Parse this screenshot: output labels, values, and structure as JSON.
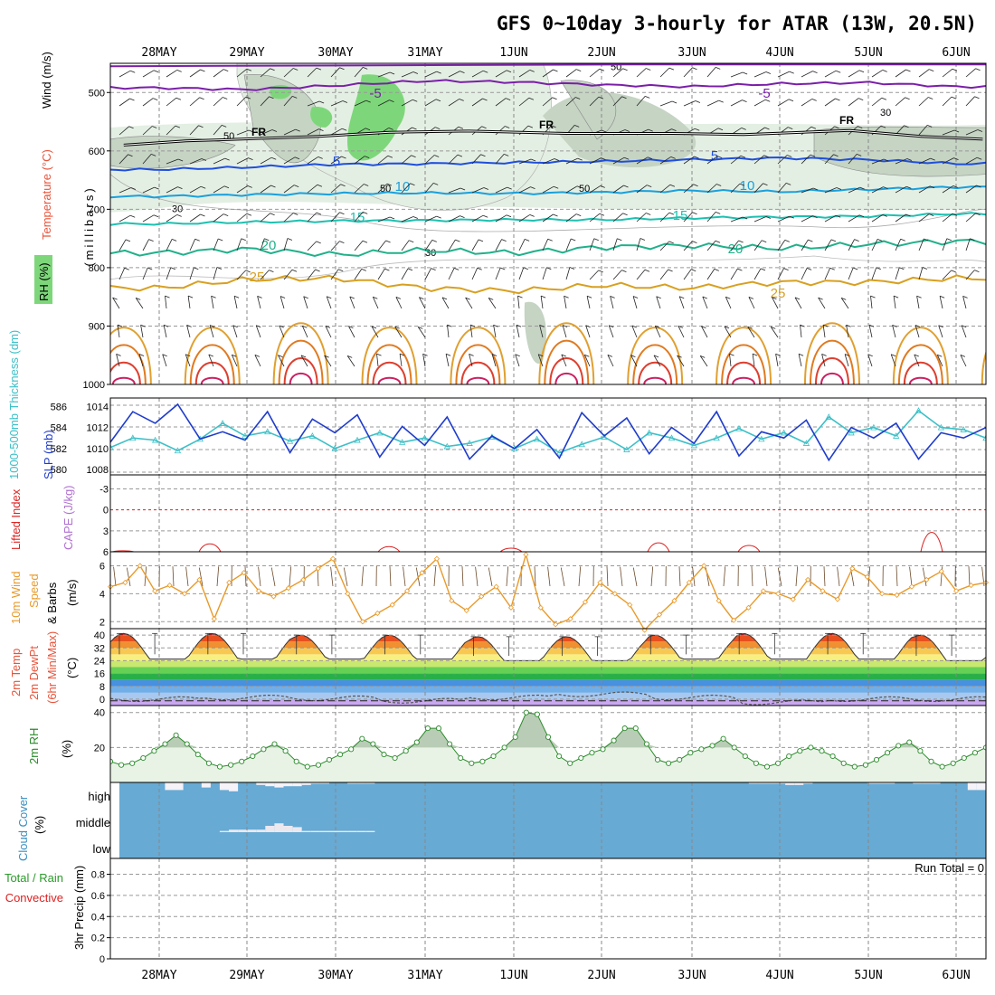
{
  "title": "GFS 0~10day 3-hourly for ATAR (13W, 20.5N)",
  "colors": {
    "rh_light": "#e4efe3",
    "rh_mid": "#c5d4c3",
    "rh_high": "#7dd77a",
    "temp_m5": "#7a1fa8",
    "temp_5": "#1f4fdc",
    "temp_10": "#1aa0dc",
    "temp_15": "#1ec0b0",
    "temp_20": "#20b08a",
    "temp_25": "#d8a020",
    "slp": "#1f3ccc",
    "thick": "#3cc0c8",
    "li": "#dd2222",
    "cape": "#b070d0",
    "wind10": "#e89a2a",
    "rh2m": "#2a8a2a",
    "rh2m_fill": "#d4e8d2",
    "cloud": "#67aad4",
    "precip_lbl_green": "#2a9a2a",
    "precip_lbl_red": "#dd2222"
  },
  "chart_data": [
    {
      "type": "heatmap",
      "panel": "upper-air",
      "ylabel": "(millibars)",
      "ylabel_parts": [
        "Wind (m/s)",
        "Temperature (°C)",
        "RH (%)"
      ],
      "yticks": [
        500,
        600,
        700,
        800,
        900,
        1000
      ],
      "ylim": [
        450,
        1000
      ],
      "x_dates": [
        "28MAY",
        "29MAY",
        "30MAY",
        "31MAY",
        "1JUN",
        "2JUN",
        "3JUN",
        "4JUN",
        "5JUN",
        "6JUN"
      ],
      "freezing_label": "FR",
      "freezing_level": [
        {
          "date": "27.6",
          "mb": 590
        },
        {
          "date": "28.3",
          "mb": 583
        },
        {
          "date": "28.9",
          "mb": 580
        },
        {
          "date": "29.8",
          "mb": 575
        },
        {
          "date": "30.6",
          "mb": 568
        },
        {
          "date": "31.5",
          "mb": 566
        },
        {
          "date": "1.6",
          "mb": 570
        },
        {
          "date": "2.8",
          "mb": 570
        },
        {
          "date": "3.6",
          "mb": 572
        },
        {
          "date": "4.8",
          "mb": 565
        },
        {
          "date": "5.6",
          "mb": 575
        },
        {
          "date": "6.3",
          "mb": 580
        }
      ],
      "temp_isotherms": [
        {
          "label": "-5",
          "mb": [
            492,
            495,
            488,
            480,
            482,
            487,
            490,
            485,
            483,
            490
          ]
        },
        {
          "label": "5",
          "mb": [
            632,
            628,
            623,
            622,
            620,
            618,
            615,
            612,
            615,
            622
          ]
        },
        {
          "label": "10",
          "mb": [
            678,
            675,
            673,
            672,
            673,
            671,
            668,
            670,
            666,
            662
          ]
        },
        {
          "label": "15",
          "mb": [
            725,
            722,
            720,
            719,
            718,
            718,
            715,
            713,
            712,
            708
          ]
        },
        {
          "label": "20",
          "mb": [
            775,
            768,
            778,
            770,
            775,
            765,
            762,
            767,
            760,
            755
          ]
        },
        {
          "label": "25",
          "mb": [
            835,
            820,
            818,
            835,
            840,
            830,
            835,
            825,
            825,
            818
          ]
        }
      ],
      "rh_contour_labels": [
        "30",
        "50",
        "70"
      ]
    },
    {
      "type": "line",
      "panel": "pressure",
      "series": [
        {
          "name": "SLP (mb)",
          "yticks": [
            1008,
            1010,
            1012,
            1014
          ],
          "values": [
            1010.6,
            1013.5,
            1012.4,
            1014.2,
            1010.9,
            1011.6,
            1010.8,
            1013.5,
            1009.6,
            1012.8,
            1011.5,
            1013.2,
            1009.2,
            1012.1,
            1010.3,
            1013.0,
            1009.0,
            1011.2,
            1010.0,
            1011.8,
            1009.1,
            1013.4,
            1011.2,
            1012.9,
            1009.5,
            1012.0,
            1010.5,
            1013.5,
            1009.3,
            1011.6,
            1011.0,
            1012.7,
            1008.9,
            1012.0,
            1011.0,
            1012.4,
            1009.0,
            1011.5,
            1011.0,
            1012.0
          ]
        },
        {
          "name": "1000-500mb Thickness (dm)",
          "yticks": [
            580,
            582,
            584,
            586
          ],
          "values": [
            582.1,
            583.0,
            582.8,
            581.8,
            582.9,
            584.4,
            583.2,
            583.6,
            582.7,
            583.2,
            582.0,
            582.8,
            583.5,
            582.6,
            583.0,
            582.2,
            582.5,
            583.1,
            582.0,
            582.9,
            581.6,
            582.4,
            583.1,
            581.9,
            583.5,
            583.0,
            582.3,
            583.0,
            583.9,
            582.9,
            583.5,
            582.5,
            585.0,
            583.5,
            584.0,
            583.2,
            585.6,
            584.0,
            583.8,
            583.0
          ]
        }
      ]
    },
    {
      "type": "line",
      "panel": "stability",
      "series": [
        {
          "name": "Lifted Index",
          "yticks": [
            -3,
            0,
            3,
            6
          ],
          "ytick_labels": [
            "-3",
            "0",
            "3",
            "6"
          ]
        },
        {
          "name": "CAPE (J/kg)"
        }
      ],
      "ylim": [
        -5,
        6
      ]
    },
    {
      "type": "line",
      "panel": "wind10m",
      "ylabel": "(m/s)",
      "series_label_parts": [
        "10m Wind",
        "Speed",
        "& Barbs"
      ],
      "yticks": [
        2,
        4,
        6
      ],
      "ylim": [
        1.5,
        7
      ],
      "values": [
        4.5,
        4.8,
        6.0,
        4.2,
        4.6,
        4.0,
        5.0,
        2.2,
        4.8,
        5.5,
        4.2,
        3.8,
        4.4,
        5.0,
        5.8,
        6.5,
        4.0,
        2.0,
        2.6,
        3.2,
        4.2,
        5.5,
        6.5,
        3.5,
        2.8,
        3.8,
        4.5,
        3.0,
        6.8,
        3.0,
        1.8,
        2.2,
        3.4,
        4.8,
        4.0,
        3.2,
        1.4,
        2.5,
        3.5,
        4.8,
        6.0,
        3.5,
        2.1,
        3.0,
        4.2,
        4.0,
        3.6,
        5.0,
        4.2,
        3.6,
        5.8,
        5.2,
        4.0,
        3.9,
        4.5,
        5.0,
        5.6,
        4.2,
        4.6,
        4.8
      ]
    },
    {
      "type": "area",
      "panel": "temperature",
      "ylabel": "(°C)",
      "series_label_parts": [
        "2m Temp",
        "2m DewPt",
        "(6hr Min/Max)"
      ],
      "yticks": [
        40,
        32,
        24,
        16,
        8,
        0
      ],
      "ytick_labels": [
        "40",
        "32",
        "24",
        "16",
        "8",
        "0"
      ],
      "ylim": [
        -4,
        44
      ],
      "temp_max": [
        41,
        41,
        40,
        40,
        39,
        39,
        40,
        41,
        41,
        40
      ],
      "temp_min": [
        25,
        25,
        25,
        25,
        24,
        24,
        25,
        25,
        25,
        24
      ],
      "dewpoint": [
        0,
        1,
        0.5,
        -1,
        1,
        3,
        1,
        -2,
        0,
        0
      ]
    },
    {
      "type": "area",
      "panel": "rh2m",
      "ylabel": "(%)",
      "series_label": "2m RH",
      "yticks": [
        20,
        40
      ],
      "ylim": [
        0,
        44
      ],
      "values": [
        12,
        10,
        11,
        14,
        18,
        22,
        27,
        22,
        16,
        11,
        9,
        10,
        12,
        15,
        19,
        22,
        18,
        12,
        9,
        10,
        13,
        16,
        19,
        25,
        22,
        16,
        14,
        18,
        23,
        31,
        31,
        22,
        14,
        11,
        12,
        15,
        20,
        26,
        40,
        39,
        26,
        15,
        11,
        14,
        17,
        19,
        24,
        31,
        31,
        22,
        13,
        11,
        13,
        17,
        19,
        21,
        25,
        20,
        15,
        11,
        9,
        11,
        15,
        18,
        20,
        18,
        15,
        11,
        9,
        10,
        13,
        17,
        21,
        23,
        18,
        12,
        9,
        11,
        14,
        17,
        20
      ]
    },
    {
      "type": "bar",
      "panel": "cloud",
      "series_label_parts": [
        "Cloud Cover",
        "(%)"
      ],
      "categories": [
        "high",
        "middle",
        "low"
      ],
      "high_cover": [
        0,
        0,
        0,
        0,
        0,
        30,
        30,
        0,
        0,
        20,
        0,
        30,
        35,
        0,
        0,
        10,
        15,
        20,
        15,
        15,
        10,
        5,
        5,
        0,
        0,
        5,
        5,
        5,
        0,
        0,
        0,
        0,
        0,
        0,
        0,
        0,
        0,
        0,
        0,
        0,
        0,
        0,
        0,
        0,
        0,
        0,
        0,
        0,
        0,
        0,
        0,
        0,
        0,
        0,
        0,
        0,
        0,
        0,
        0,
        0,
        0,
        0,
        0,
        0,
        0,
        0,
        0,
        0,
        0,
        5,
        5,
        5,
        5,
        10,
        10,
        5,
        0,
        0,
        0,
        0,
        0,
        0,
        5,
        5,
        5,
        0,
        0,
        5,
        5,
        5,
        0,
        0,
        0,
        30,
        30
      ],
      "mid_cover": [
        0,
        0,
        0,
        0,
        0,
        0,
        0,
        0,
        0,
        0,
        0,
        5,
        10,
        10,
        10,
        10,
        25,
        35,
        25,
        20,
        5,
        5,
        5,
        5,
        5,
        5,
        5,
        5
      ]
    },
    {
      "type": "bar",
      "panel": "precip",
      "ylabel": "3hr Precip (mm)",
      "series_label_parts": [
        "Total / Rain",
        "Convective"
      ],
      "yticks": [
        0,
        0.2,
        0.4,
        0.6,
        0.8
      ],
      "ytick_labels": [
        "0",
        "0.2",
        "0.4",
        "0.6",
        "0.8"
      ],
      "ylim": [
        0,
        0.95
      ],
      "run_total_label": "Run Total = 0",
      "values": []
    }
  ]
}
